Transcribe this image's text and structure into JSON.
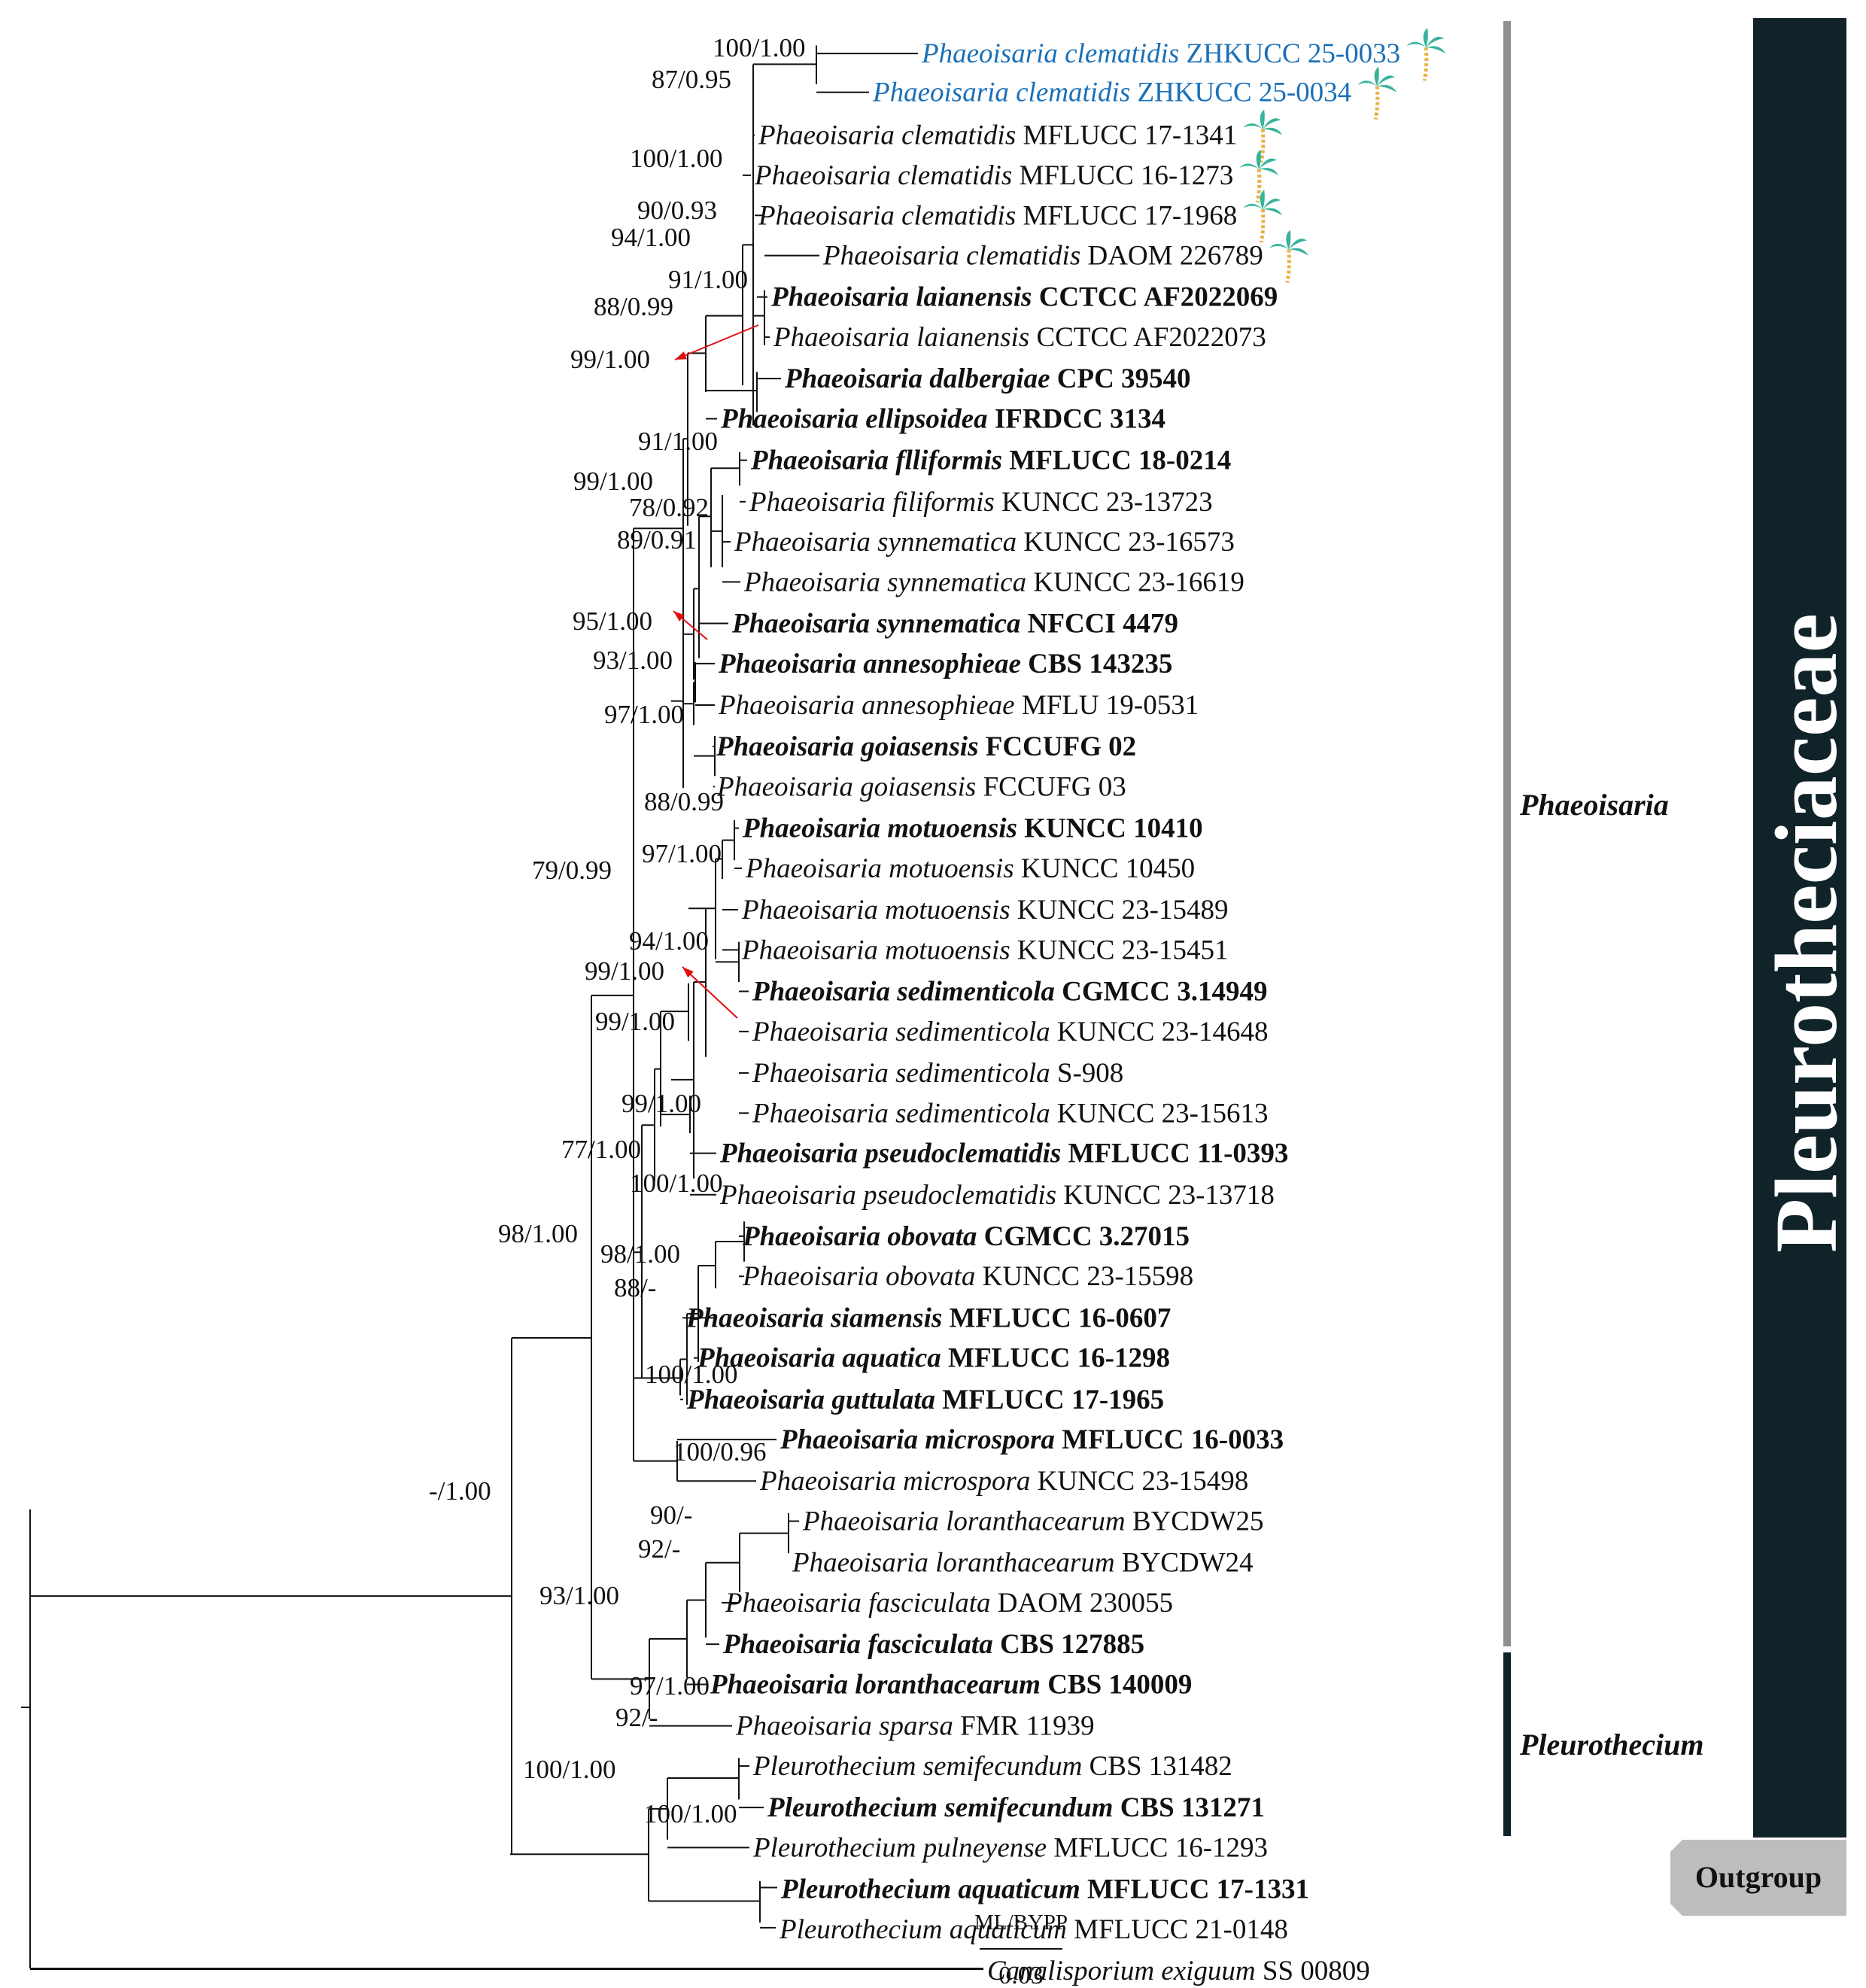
{
  "tree": {
    "colors": {
      "branch": "#111111",
      "new_isolate": "#1a70b8",
      "bar_genus": "#8d9091",
      "bar_pleuro": "#102329",
      "bar_family": "#102329",
      "outgroup_box": "#bdbdbd",
      "arrow": "#e01010",
      "palm": "#38b39b"
    },
    "taxa": [
      {
        "genus": "Phaeoisaria",
        "epithet": "clematidis",
        "strain": "ZHKUCC 25-0033",
        "bold": false,
        "new": true,
        "palm": true
      },
      {
        "genus": "Phaeoisaria",
        "epithet": "clematidis",
        "strain": "ZHKUCC 25-0034",
        "bold": false,
        "new": true,
        "palm": true
      },
      {
        "genus": "Phaeoisaria",
        "epithet": "clematidis",
        "strain": "MFLUCC 17-1341",
        "bold": false,
        "new": false,
        "palm": true
      },
      {
        "genus": "Phaeoisaria",
        "epithet": "clematidis",
        "strain": "MFLUCC 16-1273",
        "bold": false,
        "new": false,
        "palm": true
      },
      {
        "genus": "Phaeoisaria",
        "epithet": "clematidis",
        "strain": "MFLUCC 17-1968",
        "bold": false,
        "new": false,
        "palm": true
      },
      {
        "genus": "Phaeoisaria",
        "epithet": "clematidis",
        "strain": "DAOM 226789",
        "bold": false,
        "new": false,
        "palm": true
      },
      {
        "genus": "Phaeoisaria",
        "epithet": "laianensis",
        "strain": "CCTCC AF2022069",
        "bold": true,
        "new": false,
        "palm": false
      },
      {
        "genus": "Phaeoisaria",
        "epithet": "laianensis",
        "strain": "CCTCC AF2022073",
        "bold": false,
        "new": false,
        "palm": false
      },
      {
        "genus": "Phaeoisaria",
        "epithet": "dalbergiae",
        "strain": "CPC 39540",
        "bold": true,
        "new": false,
        "palm": false
      },
      {
        "genus": "Phaeoisaria",
        "epithet": "ellipsoidea",
        "strain": "IFRDCC 3134",
        "bold": true,
        "new": false,
        "palm": false
      },
      {
        "genus": "Phaeoisaria",
        "epithet": "flliformis",
        "strain": "MFLUCC 18-0214",
        "bold": true,
        "new": false,
        "palm": false
      },
      {
        "genus": "Phaeoisaria",
        "epithet": "filiformis",
        "strain": "KUNCC 23-13723",
        "bold": false,
        "new": false,
        "palm": false
      },
      {
        "genus": "Phaeoisaria",
        "epithet": "synnematica",
        "strain": "KUNCC 23-16573",
        "bold": false,
        "new": false,
        "palm": false
      },
      {
        "genus": "Phaeoisaria",
        "epithet": "synnematica",
        "strain": "KUNCC 23-16619",
        "bold": false,
        "new": false,
        "palm": false
      },
      {
        "genus": "Phaeoisaria",
        "epithet": "synnematica",
        "strain": "NFCCI 4479",
        "bold": true,
        "new": false,
        "palm": false
      },
      {
        "genus": "Phaeoisaria",
        "epithet": "annesophieae",
        "strain": "CBS 143235",
        "bold": true,
        "new": false,
        "palm": false
      },
      {
        "genus": "Phaeoisaria",
        "epithet": "annesophieae",
        "strain": "MFLU 19-0531",
        "bold": false,
        "new": false,
        "palm": false
      },
      {
        "genus": "Phaeoisaria",
        "epithet": "goiasensis",
        "strain": "FCCUFG 02",
        "bold": true,
        "new": false,
        "palm": false
      },
      {
        "genus": "Phaeoisaria",
        "epithet": "goiasensis",
        "strain": "FCCUFG 03",
        "bold": false,
        "new": false,
        "palm": false
      },
      {
        "genus": "Phaeoisaria",
        "epithet": "motuoensis",
        "strain": "KUNCC 10410",
        "bold": true,
        "new": false,
        "palm": false
      },
      {
        "genus": "Phaeoisaria",
        "epithet": "motuoensis",
        "strain": "KUNCC 10450",
        "bold": false,
        "new": false,
        "palm": false
      },
      {
        "genus": "Phaeoisaria",
        "epithet": "motuoensis",
        "strain": "KUNCC 23-15489",
        "bold": false,
        "new": false,
        "palm": false
      },
      {
        "genus": "Phaeoisaria",
        "epithet": "motuoensis",
        "strain": "KUNCC 23-15451",
        "bold": false,
        "new": false,
        "palm": false
      },
      {
        "genus": "Phaeoisaria",
        "epithet": "sedimenticola",
        "strain": "CGMCC 3.14949",
        "bold": true,
        "new": false,
        "palm": false
      },
      {
        "genus": "Phaeoisaria",
        "epithet": "sedimenticola",
        "strain": "KUNCC 23-14648",
        "bold": false,
        "new": false,
        "palm": false
      },
      {
        "genus": "Phaeoisaria",
        "epithet": "sedimenticola",
        "strain": "S-908",
        "bold": false,
        "new": false,
        "palm": false
      },
      {
        "genus": "Phaeoisaria",
        "epithet": "sedimenticola",
        "strain": "KUNCC 23-15613",
        "bold": false,
        "new": false,
        "palm": false
      },
      {
        "genus": "Phaeoisaria",
        "epithet": "pseudoclematidis",
        "strain": "MFLUCC 11-0393",
        "bold": true,
        "new": false,
        "palm": false
      },
      {
        "genus": "Phaeoisaria",
        "epithet": "pseudoclematidis",
        "strain": "KUNCC 23-13718",
        "bold": false,
        "new": false,
        "palm": false
      },
      {
        "genus": "Phaeoisaria",
        "epithet": "obovata",
        "strain": "CGMCC 3.27015",
        "bold": true,
        "new": false,
        "palm": false
      },
      {
        "genus": "Phaeoisaria",
        "epithet": "obovata",
        "strain": "KUNCC 23-15598",
        "bold": false,
        "new": false,
        "palm": false
      },
      {
        "genus": "Phaeoisaria",
        "epithet": "siamensis",
        "strain": "MFLUCC 16-0607",
        "bold": true,
        "new": false,
        "palm": false
      },
      {
        "genus": "Phaeoisaria",
        "epithet": "aquatica",
        "strain": "MFLUCC 16-1298",
        "bold": true,
        "new": false,
        "palm": false
      },
      {
        "genus": "Phaeoisaria",
        "epithet": "guttulata",
        "strain": "MFLUCC 17-1965",
        "bold": true,
        "new": false,
        "palm": false
      },
      {
        "genus": "Phaeoisaria",
        "epithet": "microspora",
        "strain": "MFLUCC 16-0033",
        "bold": true,
        "new": false,
        "palm": false
      },
      {
        "genus": "Phaeoisaria",
        "epithet": "microspora",
        "strain": "KUNCC 23-15498",
        "bold": false,
        "new": false,
        "palm": false
      },
      {
        "genus": "Phaeoisaria",
        "epithet": "loranthacearum",
        "strain": "BYCDW25",
        "bold": false,
        "new": false,
        "palm": false
      },
      {
        "genus": "Phaeoisaria",
        "epithet": "loranthacearum",
        "strain": "BYCDW24",
        "bold": false,
        "new": false,
        "palm": false
      },
      {
        "genus": "Phaeoisaria",
        "epithet": "fasciculata",
        "strain": "DAOM 230055",
        "bold": false,
        "new": false,
        "palm": false
      },
      {
        "genus": "Phaeoisaria",
        "epithet": "fasciculata",
        "strain": "CBS 127885",
        "bold": true,
        "new": false,
        "palm": false
      },
      {
        "genus": "Phaeoisaria",
        "epithet": "loranthacearum",
        "strain": "CBS 140009",
        "bold": true,
        "new": false,
        "palm": false
      },
      {
        "genus": "Phaeoisaria",
        "epithet": "sparsa",
        "strain": "FMR 11939",
        "bold": false,
        "new": false,
        "palm": false
      },
      {
        "genus": "Pleurothecium",
        "epithet": "semifecundum",
        "strain": "CBS 131482",
        "bold": false,
        "new": false,
        "palm": false
      },
      {
        "genus": "Pleurothecium",
        "epithet": "semifecundum",
        "strain": "CBS 131271",
        "bold": true,
        "new": false,
        "palm": false
      },
      {
        "genus": "Pleurothecium",
        "epithet": "pulneyense",
        "strain": "MFLUCC 16-1293",
        "bold": false,
        "new": false,
        "palm": false
      },
      {
        "genus": "Pleurothecium",
        "epithet": "aquaticum",
        "strain": "MFLUCC 17-1331",
        "bold": true,
        "new": false,
        "palm": false
      },
      {
        "genus": "Pleurothecium",
        "epithet": "aquaticum",
        "strain": "MFLUCC 21-0148",
        "bold": false,
        "new": false,
        "palm": false
      },
      {
        "genus": "Canalisporium",
        "epithet": "exiguum",
        "strain": "SS 00809",
        "bold": false,
        "new": false,
        "palm": false
      }
    ],
    "supports": [
      "100/1.00",
      "87/0.95",
      "100/1.00",
      "90/0.93",
      "94/1.00",
      "91/1.00",
      "88/0.99",
      "99/1.00",
      "91/1.00",
      "99/1.00",
      "78/0.92",
      "89/0.91",
      "95/1.00",
      "93/1.00",
      "97/1.00",
      "88/0.99",
      "97/1.00",
      "79/0.99",
      "94/1.00",
      "99/1.00",
      "99/1.00",
      "99/1.00",
      "77/1.00",
      "100/1.00",
      "98/1.00",
      "88/-",
      "100/1.00",
      "98/1.00",
      "100/0.96",
      "90/-",
      "92/-",
      "93/1.00",
      "-/1.00",
      "97/1.00",
      "92/-",
      "100/1.00",
      "100/1.00"
    ],
    "clades": {
      "phaeoisaria": "Phaeoisaria",
      "pleurothecium": "Pleurothecium",
      "family": "Pleurotheciaceae",
      "outgroup": "Outgroup"
    },
    "legend": {
      "support_key": "ML/BYPP",
      "scale_value": "0.03"
    }
  }
}
